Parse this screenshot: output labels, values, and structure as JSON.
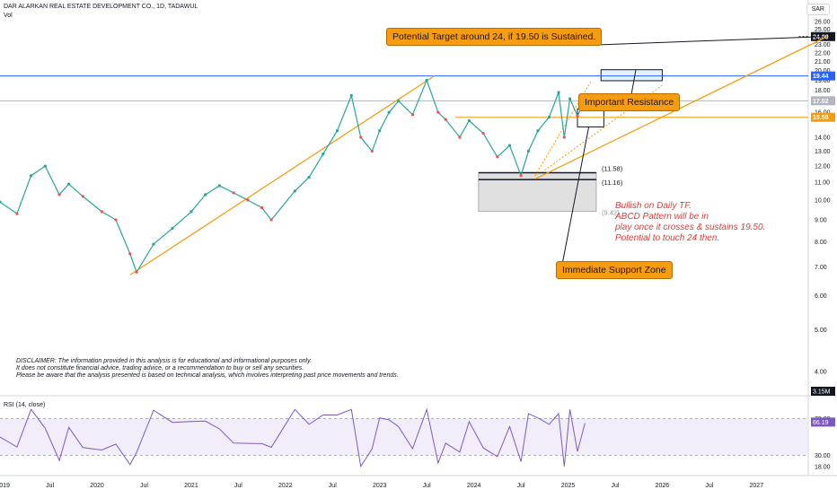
{
  "header": {
    "title": "DAR ALARKAN REAL ESTATE DEVELOPMENT CO., 1D, TADAWUL",
    "volume_label": "Vol",
    "currency": "SAR"
  },
  "annotations": {
    "target": "Potential Target around 24, if 19.50 is Sustained.",
    "resistance": "Important Resistance",
    "support": "Immediate Support Zone",
    "bullish": [
      "Bullish on Daily TF.",
      "ABCD Pattern will be in",
      "play once it crosses & sustains 19.50.",
      "Potential to touch 24 then."
    ],
    "disclaimer": [
      "DISCLAIMER: The information provided in this analysis is for educational and informational purposes only.",
      "It does not constitute financial advice, trading advice, or a recommendation to buy or sell any securities.",
      "Please be aware that the analysis presented is based on technical analysis, which involves interpreting past price movements and trends."
    ],
    "zone_labels": [
      "(11.58)",
      "(11.16)",
      "(9.42)"
    ]
  },
  "chart_data": [
    {
      "type": "line",
      "title": "DAR ALARKAN REAL ESTATE DEVELOPMENT CO., 1D, TADAWUL",
      "scale": "log",
      "currency": "SAR",
      "x_tick_labels": [
        "2019",
        "Jul",
        "2020",
        "Jul",
        "2021",
        "Jul",
        "2022",
        "Jul",
        "2023",
        "Jul",
        "2024",
        "Jul",
        "2025",
        "Jul",
        "2026",
        "Jul",
        "2027"
      ],
      "y_tick_labels": [
        "26.00",
        "25.00",
        "23.00",
        "22.00",
        "21.00",
        "20.00",
        "19.00",
        "18.00",
        "16.00",
        "14.00",
        "13.00",
        "12.00",
        "11.00",
        "10.00",
        "9.00",
        "8.00",
        "7.00",
        "6.00",
        "5.00",
        "4.00"
      ],
      "y_ticks": [
        26,
        25,
        23,
        22,
        21,
        20,
        19,
        18,
        16,
        14,
        13,
        12,
        11,
        10,
        9,
        8,
        7,
        6,
        5,
        4
      ],
      "ylim": [
        3.7,
        28.5
      ],
      "xlim": [
        2018.97,
        2027.55
      ],
      "price": {
        "x": [
          2018.97,
          2019.15,
          2019.3,
          2019.45,
          2019.6,
          2019.7,
          2019.85,
          2020.05,
          2020.2,
          2020.35,
          2020.42,
          2020.6,
          2020.8,
          2021.0,
          2021.15,
          2021.3,
          2021.45,
          2021.6,
          2021.75,
          2021.85,
          2022.1,
          2022.25,
          2022.4,
          2022.55,
          2022.7,
          2022.8,
          2022.92,
          2023.0,
          2023.1,
          2023.2,
          2023.35,
          2023.5,
          2023.62,
          2023.7,
          2023.85,
          2023.95,
          2024.1,
          2024.25,
          2024.38,
          2024.5,
          2024.58,
          2024.68,
          2024.8,
          2024.9,
          2024.96,
          2025.02,
          2025.1,
          2025.18
        ],
        "close": [
          9.9,
          9.3,
          11.4,
          12.0,
          10.3,
          10.9,
          10.2,
          9.4,
          9.0,
          7.5,
          6.8,
          7.9,
          8.6,
          9.4,
          10.3,
          10.8,
          10.4,
          10.0,
          9.6,
          9.0,
          10.5,
          11.3,
          12.8,
          14.5,
          17.5,
          14.0,
          13.0,
          14.5,
          16.0,
          17.0,
          15.8,
          19.0,
          16.0,
          15.4,
          14.0,
          15.3,
          14.3,
          12.6,
          13.4,
          11.4,
          13.0,
          14.5,
          15.6,
          17.8,
          14.0,
          17.2,
          15.7,
          17.02
        ]
      },
      "horizontal_levels": [
        {
          "value": 24.0,
          "label": "24.00"
        },
        {
          "value": 19.44,
          "label": "19.44"
        },
        {
          "value": 17.02,
          "label": "17.02"
        },
        {
          "value": 15.58,
          "label": "15.58"
        }
      ],
      "volume_label": "3.15M",
      "trendlines": [
        {
          "x": [
            2020.35,
            2023.58
          ],
          "y": [
            6.7,
            19.44
          ]
        },
        {
          "x": [
            2024.65,
            2027.75
          ],
          "y": [
            11.2,
            24.0
          ]
        }
      ]
    },
    {
      "type": "line",
      "title": "RSI (14, close)",
      "y_ticks": [
        70,
        30,
        18
      ],
      "y_tick_labels": [
        "70.00",
        "30.00",
        "18.00"
      ],
      "ylim": [
        10,
        90
      ],
      "band": [
        30,
        70
      ],
      "last_value": 66.19,
      "last_label": "66.19"
    }
  ]
}
